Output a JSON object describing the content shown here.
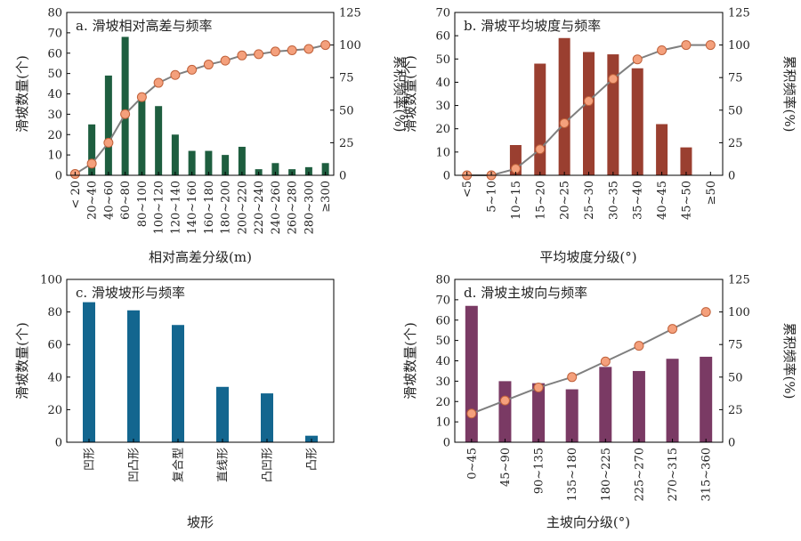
{
  "colors": {
    "panel_a_bar": "#1e5e3f",
    "panel_b_bar": "#9a3f30",
    "panel_c_bar": "#13668f",
    "panel_d_bar": "#7a3a64",
    "cumulative_line": "#7f7f7f",
    "cumulative_marker_fill": "#f4a07c",
    "cumulative_marker_edge": "#c0613a"
  },
  "chart_data": [
    {
      "id": "a",
      "type": "bar",
      "title": "a. 滑坡相对高差与频率",
      "xlabel": "相对高差分级(m)",
      "ylabel": "滑坡数量(个)",
      "y2label": "累积频率(%)",
      "ylim": [
        0,
        80
      ],
      "yticks": [
        0,
        10,
        20,
        30,
        40,
        50,
        60,
        70,
        80
      ],
      "y2lim": [
        0,
        125
      ],
      "y2ticks": [
        0,
        25,
        50,
        75,
        100,
        125
      ],
      "categories": [
        "< 20",
        "20~40",
        "40~60",
        "60~80",
        "80~100",
        "100~120",
        "120~140",
        "140~160",
        "160~180",
        "180~200",
        "200~220",
        "220~240",
        "240~260",
        "260~280",
        "280~300",
        "≥300"
      ],
      "values": [
        0,
        25,
        49,
        68,
        38,
        34,
        20,
        12,
        12,
        10,
        14,
        3,
        6,
        3,
        4,
        6
      ],
      "cumulative": [
        1,
        9,
        25,
        47,
        60,
        71,
        77,
        81,
        85,
        88,
        92,
        93,
        95,
        96,
        97,
        100
      ]
    },
    {
      "id": "b",
      "type": "bar",
      "title": "b. 滑坡平均坡度与频率",
      "xlabel": "平均坡度分级(°)",
      "ylabel": "滑坡数量(个)",
      "y2label": "累积频率(%)",
      "ylim": [
        0,
        70
      ],
      "yticks": [
        0,
        10,
        20,
        30,
        40,
        50,
        60,
        70
      ],
      "y2lim": [
        0,
        125
      ],
      "y2ticks": [
        0,
        25,
        50,
        75,
        100,
        125
      ],
      "categories": [
        "<5",
        "5~10",
        "10~15",
        "15~20",
        "20~25",
        "25~30",
        "30~35",
        "35~40",
        "40~45",
        "45~50",
        "≥50"
      ],
      "values": [
        0,
        0,
        13,
        48,
        59,
        53,
        52,
        46,
        22,
        12,
        0
      ],
      "cumulative": [
        0,
        0,
        5,
        20,
        40,
        57,
        74,
        89,
        96,
        100,
        100
      ]
    },
    {
      "id": "c",
      "type": "bar",
      "title": "c. 滑坡坡形与频率",
      "xlabel": "坡形",
      "ylabel": "滑坡数量(个)",
      "ylim": [
        0,
        100
      ],
      "yticks": [
        0,
        20,
        40,
        60,
        80,
        100
      ],
      "categories": [
        "凹形",
        "凹凸形",
        "复合型",
        "直线形",
        "凸凹形",
        "凸形"
      ],
      "values": [
        86,
        81,
        72,
        34,
        30,
        4
      ]
    },
    {
      "id": "d",
      "type": "bar",
      "title": "d. 滑坡主坡向与频率",
      "xlabel": "主坡向分级(°)",
      "ylabel": "滑坡数量(个)",
      "y2label": "累积频率(%)",
      "ylim": [
        0,
        80
      ],
      "yticks": [
        0,
        10,
        20,
        30,
        40,
        50,
        60,
        70,
        80
      ],
      "y2lim": [
        0,
        125
      ],
      "y2ticks": [
        0,
        25,
        50,
        75,
        100,
        125
      ],
      "categories": [
        "0~45",
        "45~90",
        "90~135",
        "135~180",
        "180~225",
        "225~270",
        "270~315",
        "315~360"
      ],
      "values": [
        67,
        30,
        29,
        26,
        37,
        35,
        41,
        42
      ],
      "cumulative": [
        22,
        32,
        42,
        50,
        62,
        74,
        87,
        100
      ]
    }
  ]
}
